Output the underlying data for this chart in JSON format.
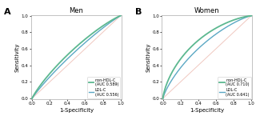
{
  "panel_A": {
    "title": "Men",
    "non_hdl_auc": 0.589,
    "ldl_auc": 0.556,
    "non_hdl_color": "#5cb890",
    "ldl_color": "#5ba8c4",
    "diag_color": "#f0c8c0"
  },
  "panel_B": {
    "title": "Women",
    "non_hdl_auc": 0.71,
    "ldl_auc": 0.641,
    "non_hdl_color": "#5cb890",
    "ldl_color": "#5ba8c4",
    "diag_color": "#f0c8c0"
  },
  "xlabel": "1-Specificity",
  "ylabel": "Sensitivity",
  "label_A": "A",
  "label_B": "B",
  "legend_non_hdl": "non-HDL-C",
  "legend_ldl": "LDL-C",
  "xticks": [
    0.0,
    0.2,
    0.4,
    0.6,
    0.8,
    1.0
  ],
  "yticks": [
    0.0,
    0.2,
    0.4,
    0.6,
    0.8,
    1.0
  ],
  "tick_labels": [
    "0.0",
    "0.2",
    "0.4",
    "0.6",
    "0.8",
    "1.0"
  ]
}
